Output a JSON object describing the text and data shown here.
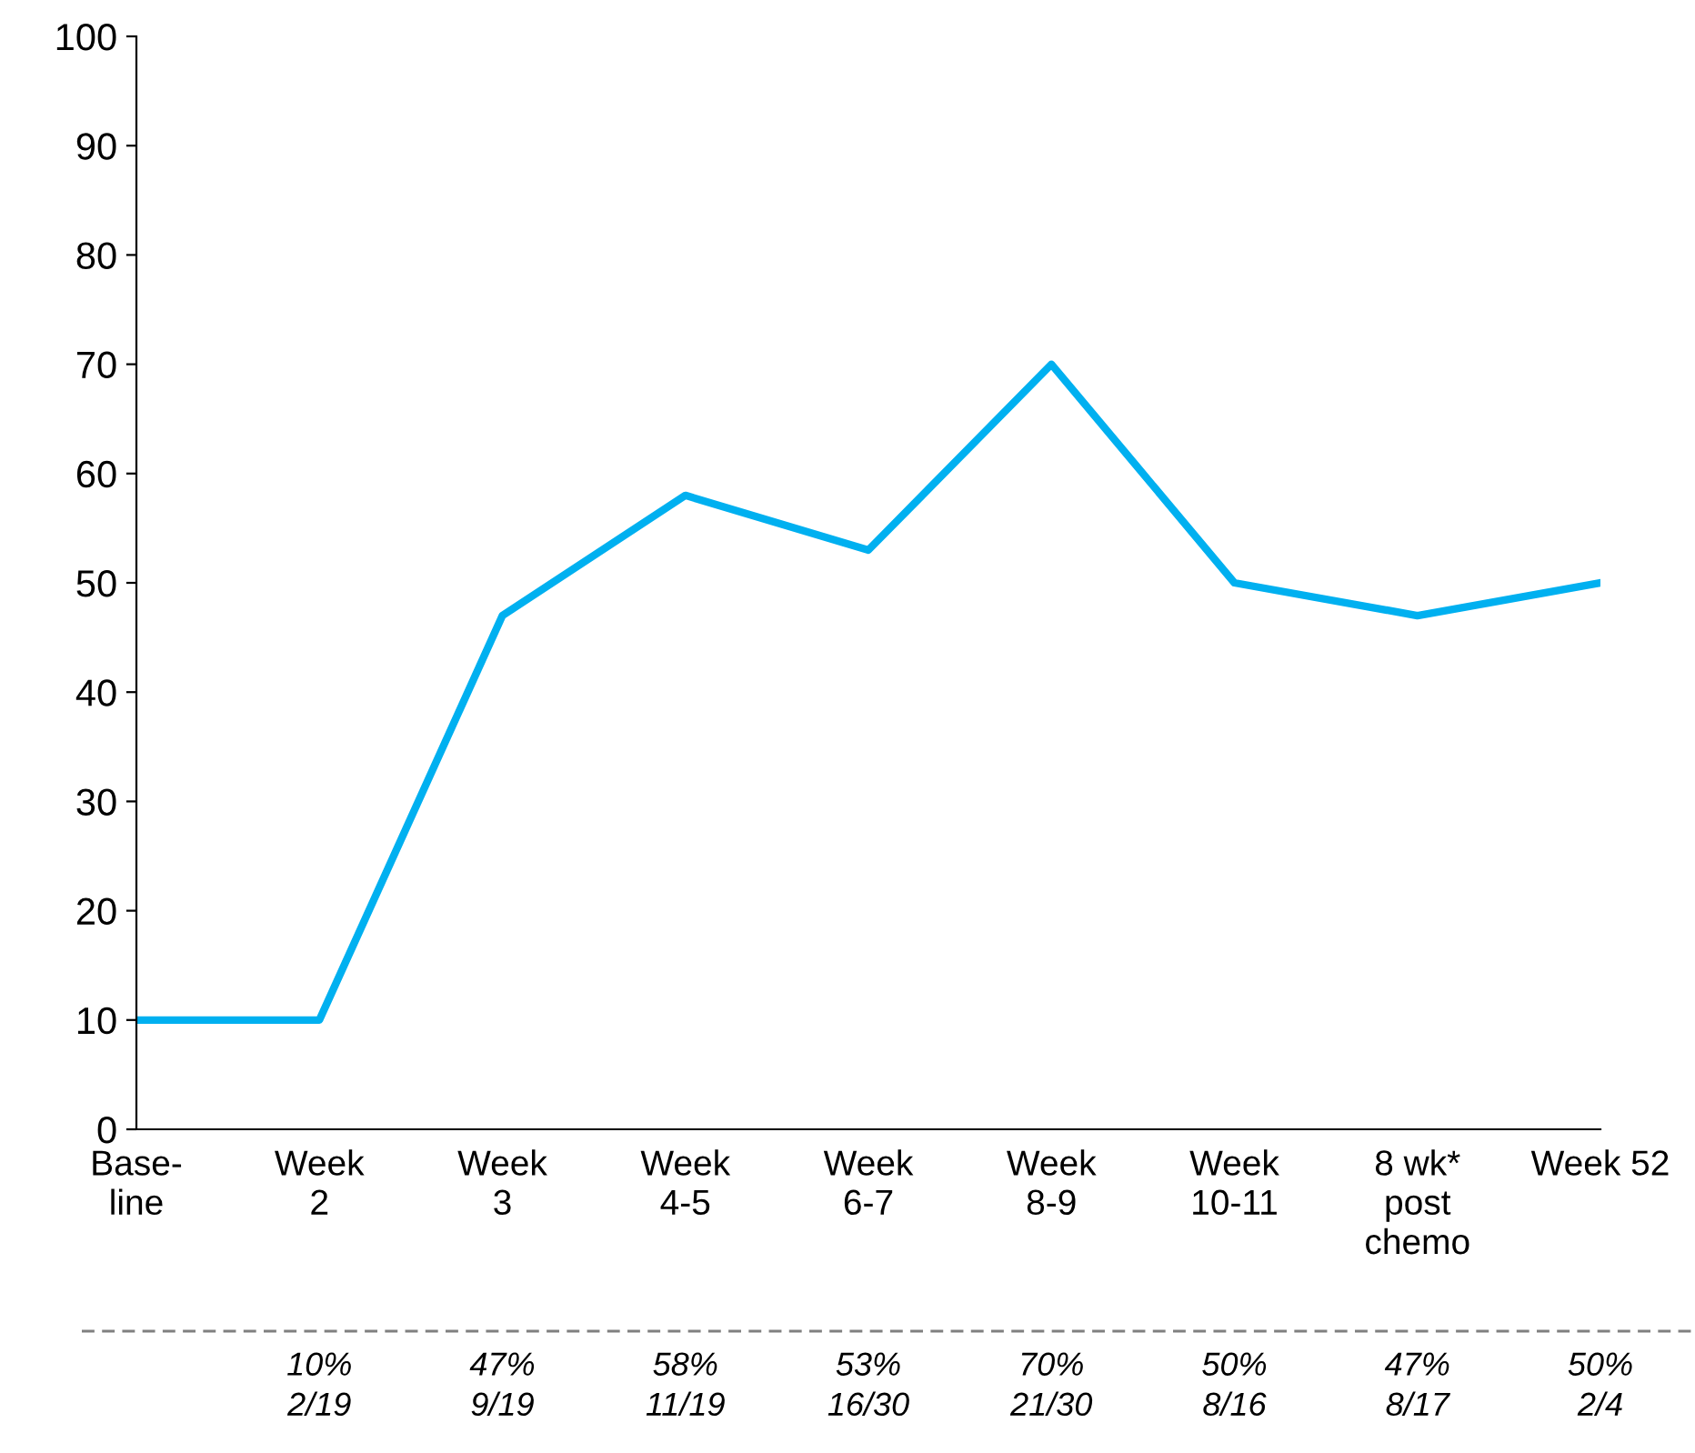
{
  "chart_data": {
    "type": "line",
    "categories": [
      "Base-\nline",
      "Week\n2",
      "Week\n3",
      "Week\n4-5",
      "Week\n6-7",
      "Week\n8-9",
      "Week\n10-11",
      "8 wk*\npost\nchemo",
      "Week 52"
    ],
    "series": [
      {
        "color": "#00b0f0",
        "values": [
          10,
          10,
          47,
          58,
          53,
          70,
          50,
          47,
          50
        ],
        "value_labels": [
          null,
          "10%\n2/19",
          "47%\n9/19",
          "58%\n11/19",
          "53%\n16/30",
          "70%\n21/30",
          "50%\n8/16",
          "47%\n8/17",
          "50%\n2/4"
        ]
      }
    ],
    "ylim": [
      0,
      100
    ],
    "yticks": [
      0,
      10,
      20,
      30,
      40,
      50,
      60,
      70,
      80,
      90,
      100
    ],
    "grid": false,
    "legend": false,
    "marker": "none",
    "line_style": "solid"
  }
}
